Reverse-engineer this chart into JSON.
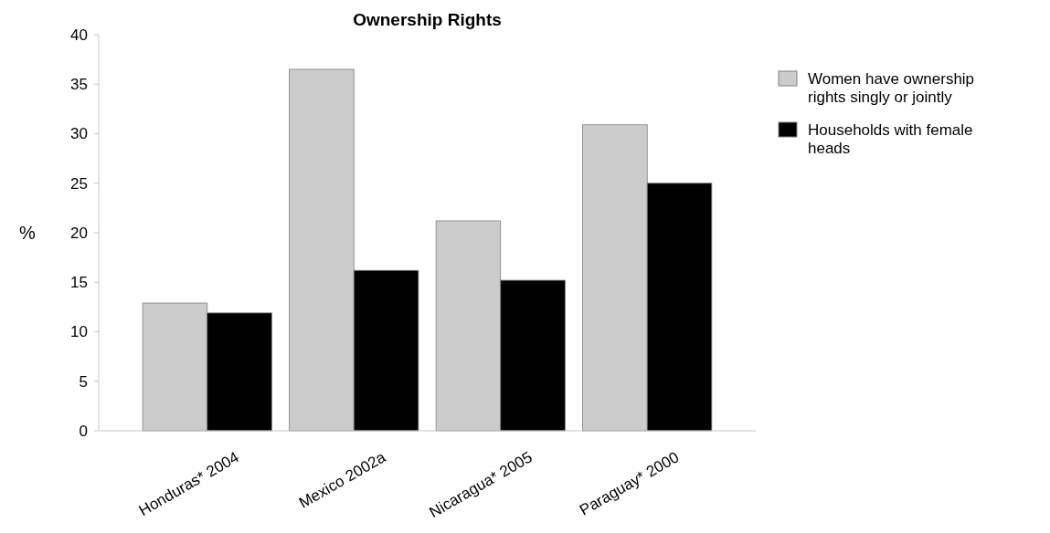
{
  "chart_data": {
    "type": "bar",
    "title": "Ownership Rights",
    "ylabel": "%",
    "categories": [
      "Honduras* 2004",
      "Mexico 2002a",
      "Nicaragua* 2005",
      "Paraguay* 2000"
    ],
    "series": [
      {
        "name": "Women have ownership rights singly or jointly",
        "color": "#cccccc",
        "values": [
          12.9,
          36.5,
          21.2,
          30.9
        ]
      },
      {
        "name": "Households with female heads",
        "color": "#000000",
        "values": [
          11.9,
          16.2,
          15.2,
          25.0
        ]
      }
    ],
    "ylim": [
      0,
      40
    ],
    "yticks": [
      0,
      5,
      10,
      15,
      20,
      25,
      30,
      35,
      40
    ],
    "grid": false,
    "legend": "right"
  }
}
